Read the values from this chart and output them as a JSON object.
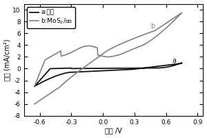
{
  "xlabel": "电压 /V",
  "ylabel": "电流 (mA/cm²)",
  "xlim": [
    -0.75,
    0.95
  ],
  "ylim": [
    -8,
    11
  ],
  "xticks": [
    -0.6,
    -0.3,
    0.0,
    0.3,
    0.6,
    0.9
  ],
  "yticks": [
    -8,
    -6,
    -4,
    -2,
    0,
    2,
    4,
    6,
    8,
    10
  ],
  "legend_a": "a:砥布",
  "legend_b": "b:MoS$_2$/砥布",
  "color_a": "#111111",
  "color_b": "#888888",
  "label_a": "a",
  "label_b": "b",
  "lw_a": 1.3,
  "lw_b": 1.3
}
